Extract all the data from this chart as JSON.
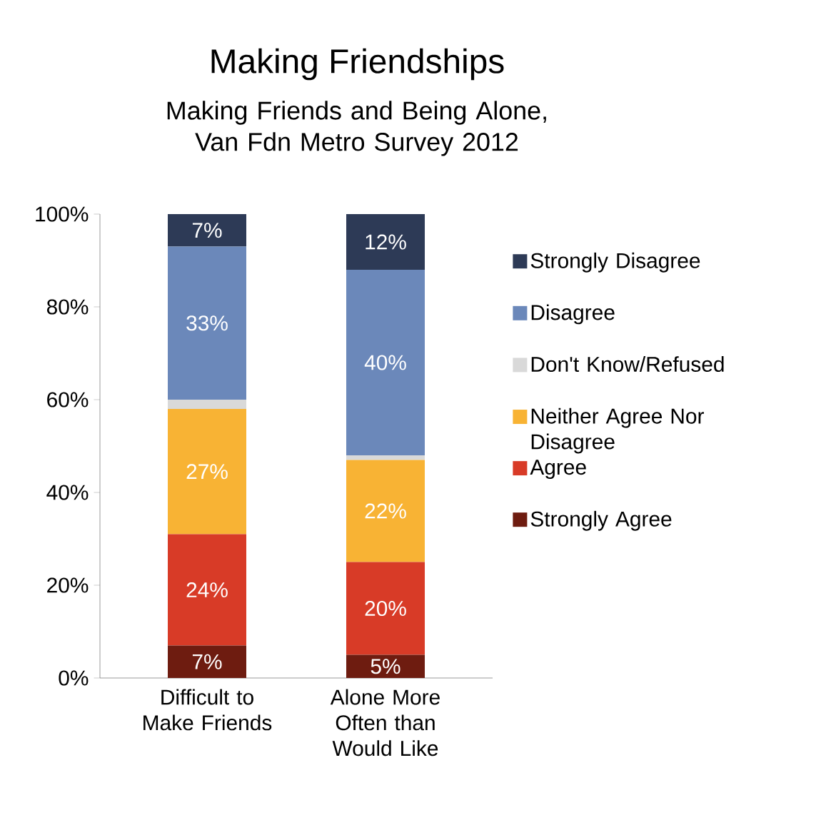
{
  "chart_data": {
    "type": "bar",
    "stacked": true,
    "title": "Making Friendships",
    "subtitle": "Making Friends and Being Alone, Van Fdn Metro Survey 2012",
    "categories": [
      "Difficult to Make Friends",
      "Alone More Often than Would Like"
    ],
    "series": [
      {
        "name": "Strongly Agree",
        "color": "#6e1c10",
        "values": [
          7,
          5
        ],
        "value_labels": [
          "7%",
          "5%"
        ]
      },
      {
        "name": "Agree",
        "color": "#d83b27",
        "values": [
          24,
          20
        ],
        "value_labels": [
          "24%",
          "20%"
        ]
      },
      {
        "name": "Neither Agree Nor Disagree",
        "color": "#f8b334",
        "values": [
          27,
          22
        ],
        "value_labels": [
          "27%",
          "22%"
        ]
      },
      {
        "name": "Don't Know/Refused",
        "color": "#d9d9d9",
        "values": [
          2,
          1
        ]
      },
      {
        "name": "Disagree",
        "color": "#6b88ba",
        "values": [
          33,
          40
        ],
        "value_labels": [
          "33%",
          "40%"
        ]
      },
      {
        "name": "Strongly Disagree",
        "color": "#2d3a56",
        "values": [
          7,
          12
        ],
        "value_labels": [
          "7%",
          "12%"
        ]
      }
    ],
    "ylim": [
      0,
      100
    ],
    "yticks": [
      {
        "value": 0,
        "label": "0%"
      },
      {
        "value": 20,
        "label": "20%"
      },
      {
        "value": 40,
        "label": "40%"
      },
      {
        "value": 60,
        "label": "60%"
      },
      {
        "value": 80,
        "label": "80%"
      },
      {
        "value": 100,
        "label": "100%"
      }
    ],
    "grid": false,
    "legend": "right"
  }
}
